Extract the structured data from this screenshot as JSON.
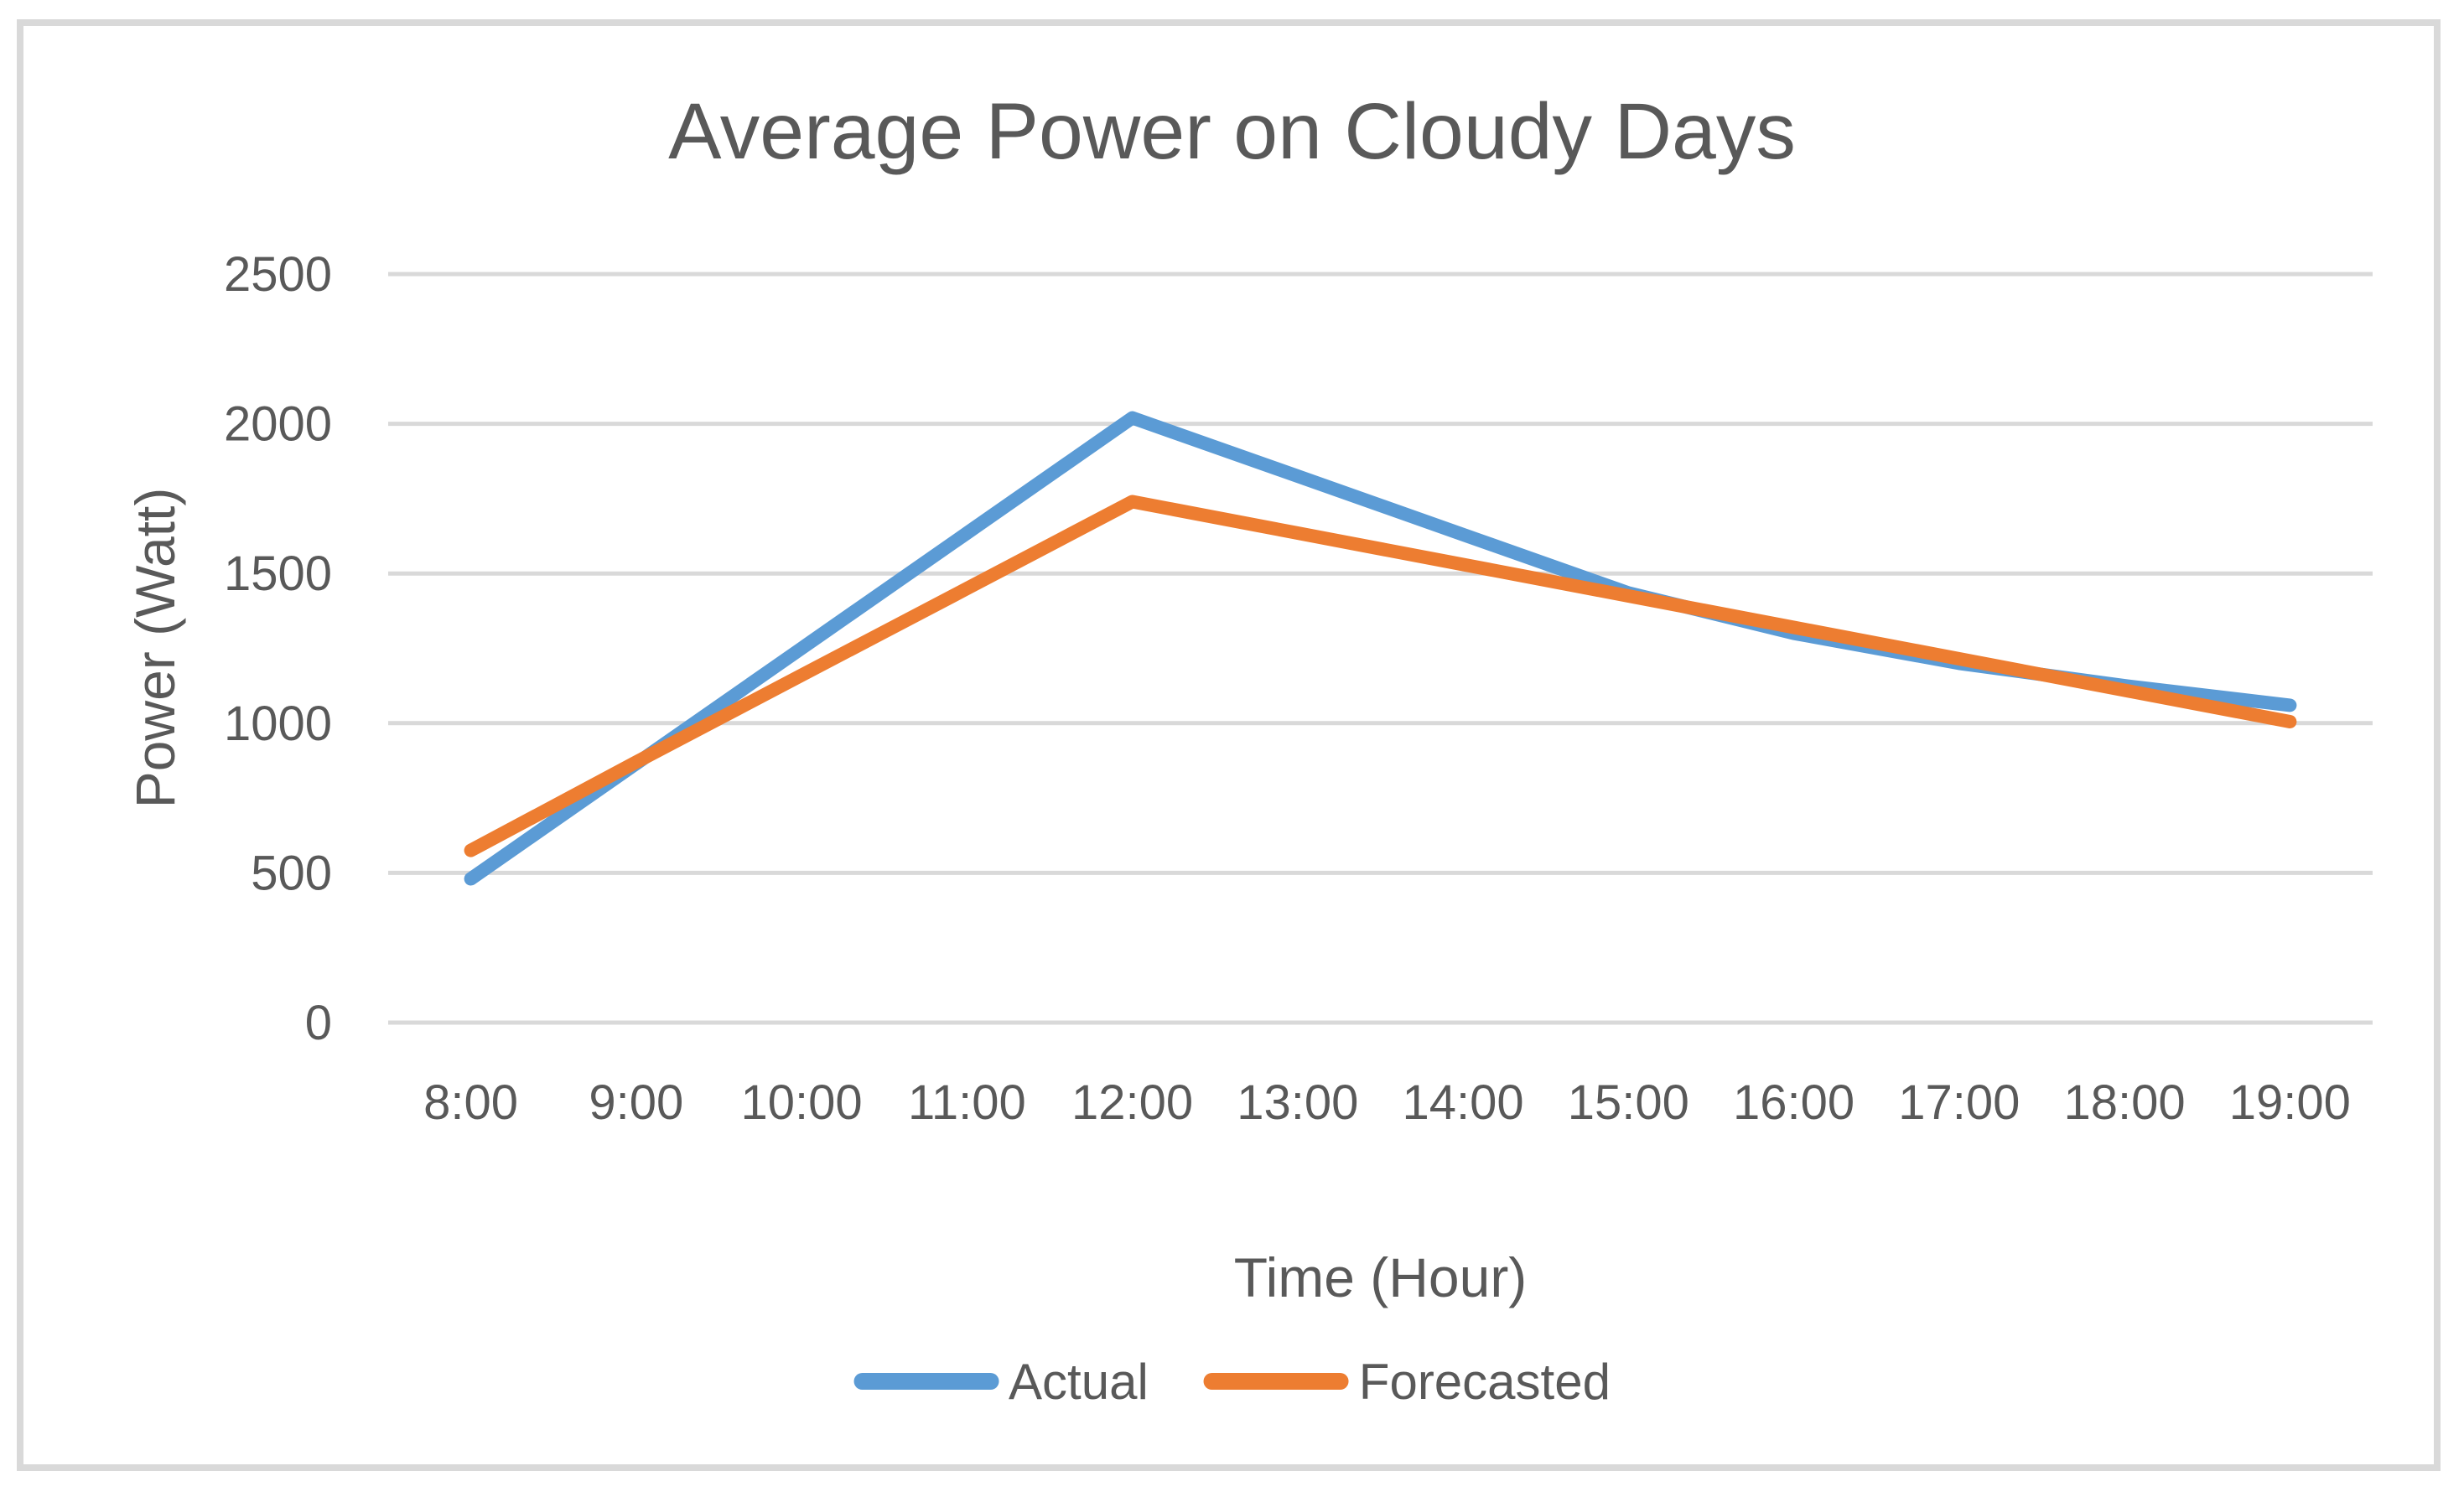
{
  "chart_data": {
    "type": "line",
    "title": "Average Power on Cloudy Days",
    "xlabel": "Time (Hour)",
    "ylabel": "Power (Watt)",
    "categories": [
      "8:00",
      "9:00",
      "10:00",
      "11:00",
      "12:00",
      "13:00",
      "14:00",
      "15:00",
      "16:00",
      "17:00",
      "18:00",
      "19:00"
    ],
    "series": [
      {
        "name": "Actual",
        "color": "#5B9BD5",
        "values": [
          480,
          865,
          1250,
          1635,
          2020,
          1825,
          1630,
          1435,
          1300,
          1200,
          1125,
          1060
        ]
      },
      {
        "name": "Forecasted",
        "color": "#ED7D31",
        "values": [
          575,
          870,
          1160,
          1450,
          1740,
          1635,
          1530,
          1425,
          1320,
          1215,
          1110,
          1005
        ]
      }
    ],
    "ylim": [
      0,
      2500
    ],
    "yticks": [
      0,
      500,
      1000,
      1500,
      2000,
      2500
    ],
    "grid": "horizontal",
    "legend_position": "bottom",
    "colors": {
      "gridline": "#D9D9D9",
      "frame_border": "#D9D9D9",
      "text": "#595959"
    }
  }
}
